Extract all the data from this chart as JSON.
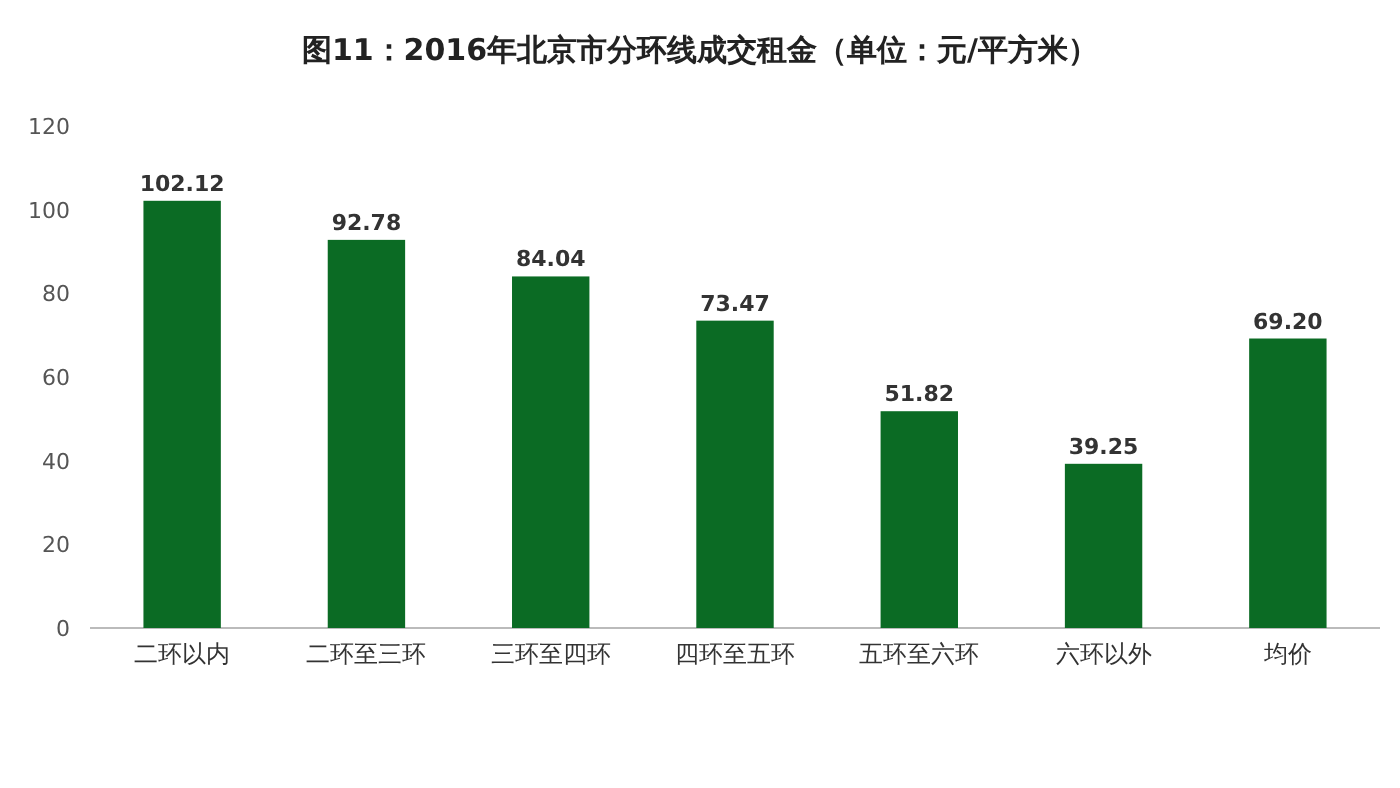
{
  "chart_data": {
    "type": "bar",
    "title": "图11：2016年北京市分环线成交租金（单位：元/平方米）",
    "categories": [
      "二环以内",
      "二环至三环",
      "三环至四环",
      "四环至五环",
      "五环至六环",
      "六环以外",
      "均价"
    ],
    "values": [
      102.12,
      92.78,
      84.04,
      73.47,
      51.82,
      39.25,
      69.2
    ],
    "value_labels": [
      "102.12",
      "92.78",
      "84.04",
      "73.47",
      "51.82",
      "39.25",
      "69.20"
    ],
    "color": "#0b6b24",
    "ylim": [
      0,
      120
    ],
    "yticks": [
      0,
      20,
      40,
      60,
      80,
      100,
      120
    ]
  }
}
